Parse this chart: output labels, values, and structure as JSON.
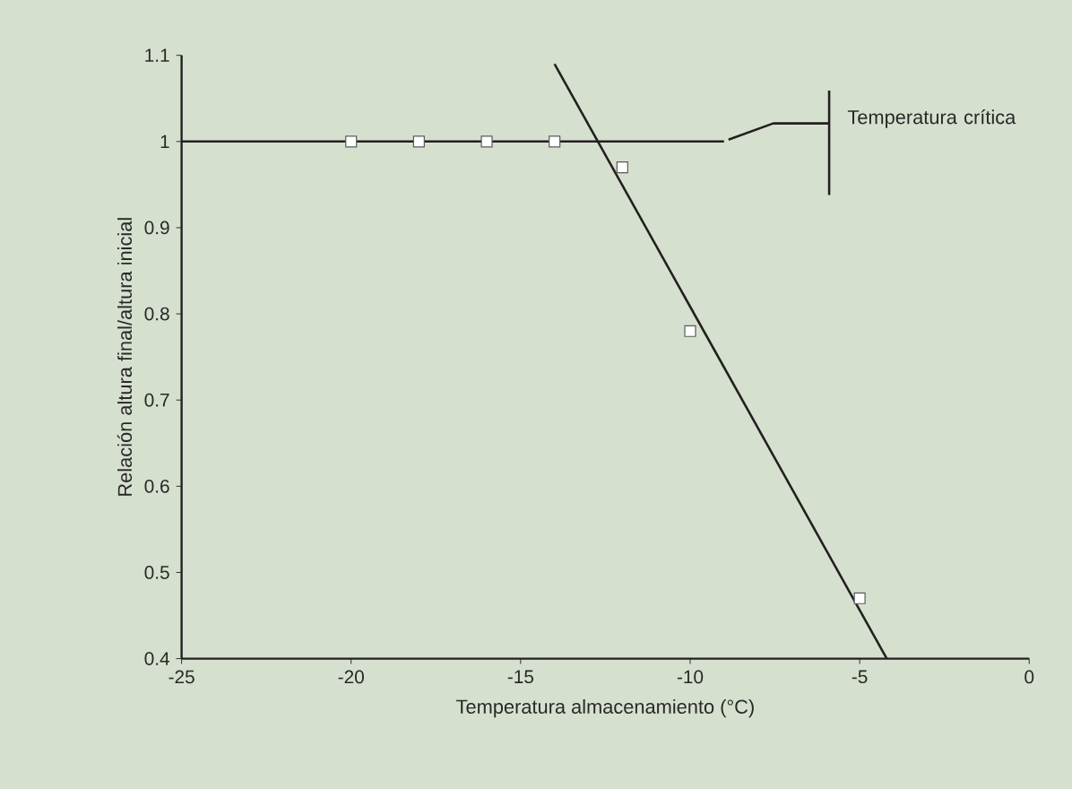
{
  "chart_data": {
    "type": "line",
    "xlabel": "Temperatura almacenamiento (°C)",
    "ylabel": "Relación altura final/altura inicial",
    "xlim": [
      -25,
      0
    ],
    "xticks": [
      -25,
      -20,
      -15,
      -10,
      -5,
      0
    ],
    "ylim": [
      0.4,
      1.1
    ],
    "yticks": [
      0.4,
      0.5,
      0.6,
      0.7,
      0.8,
      0.9,
      1,
      1.1
    ],
    "grid": false,
    "series": [
      {
        "color": "#231f20",
        "x": [
          -25,
          -9
        ],
        "values": [
          1,
          1
        ]
      },
      {
        "color": "#231f20",
        "x": [
          -14,
          -4.2
        ],
        "values": [
          1.09,
          0.4
        ]
      },
      {
        "type": "scatter",
        "marker": "square",
        "color": "#ffffff",
        "x": [
          -20,
          -18,
          -16,
          -14,
          -12,
          -10,
          -5
        ],
        "values": [
          1,
          1,
          1,
          1,
          0.97,
          0.78,
          0.47
        ]
      }
    ],
    "annotations": [
      {
        "text": "Temperatura crítica",
        "x": -9,
        "y": 1
      }
    ]
  }
}
